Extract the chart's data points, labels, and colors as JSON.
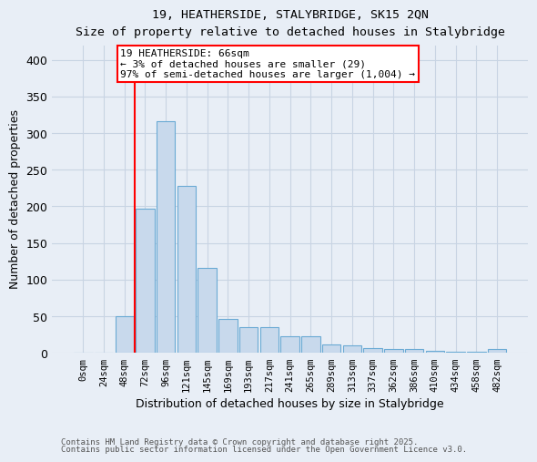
{
  "title_line1": "19, HEATHERSIDE, STALYBRIDGE, SK15 2QN",
  "title_line2": "Size of property relative to detached houses in Stalybridge",
  "xlabel": "Distribution of detached houses by size in Stalybridge",
  "ylabel": "Number of detached properties",
  "categories": [
    "0sqm",
    "24sqm",
    "48sqm",
    "72sqm",
    "96sqm",
    "121sqm",
    "145sqm",
    "169sqm",
    "193sqm",
    "217sqm",
    "241sqm",
    "265sqm",
    "289sqm",
    "313sqm",
    "337sqm",
    "362sqm",
    "386sqm",
    "410sqm",
    "434sqm",
    "458sqm",
    "482sqm"
  ],
  "values": [
    0,
    0,
    50,
    197,
    316,
    228,
    116,
    46,
    35,
    35,
    23,
    23,
    12,
    10,
    6,
    5,
    5,
    3,
    2,
    1,
    5
  ],
  "bar_color": "#c8d9ec",
  "bar_edge_color": "#6aaad4",
  "grid_color": "#c8d4e3",
  "background_color": "#e8eef6",
  "annotation_box_text": "19 HEATHERSIDE: 66sqm\n← 3% of detached houses are smaller (29)\n97% of semi-detached houses are larger (1,004) →",
  "vline_x": 2.5,
  "footer_line1": "Contains HM Land Registry data © Crown copyright and database right 2025.",
  "footer_line2": "Contains public sector information licensed under the Open Government Licence v3.0.",
  "ylim": [
    0,
    420
  ],
  "yticks": [
    0,
    50,
    100,
    150,
    200,
    250,
    300,
    350,
    400
  ]
}
